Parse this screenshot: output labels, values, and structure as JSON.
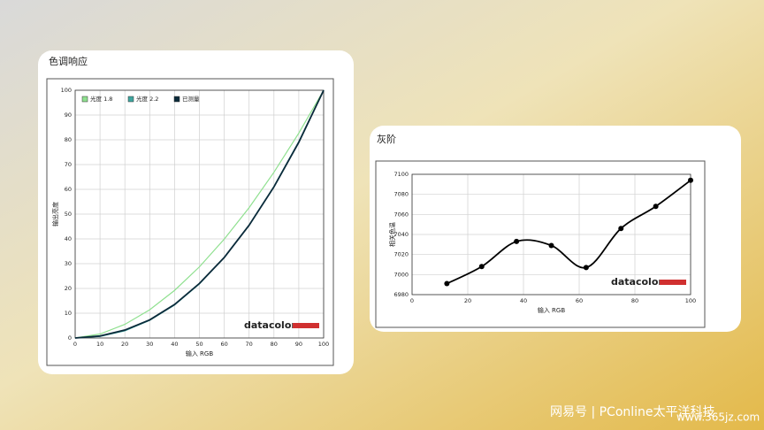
{
  "chart_data": [
    {
      "type": "line",
      "title": "色调响应",
      "x_label": "输入 RGB",
      "y_label": "输出亮度",
      "x": [
        0,
        10,
        20,
        30,
        40,
        50,
        60,
        70,
        80,
        90,
        100
      ],
      "series": [
        {
          "name": "光度 1.8",
          "color": "#8fe08f",
          "values": [
            0,
            1.6,
            5.5,
            11.4,
            19.2,
            28.7,
            39.9,
            52.6,
            66.9,
            82.7,
            100
          ]
        },
        {
          "name": "光度 2.2",
          "color": "#3fa6a0",
          "values": [
            0,
            0.6,
            2.9,
            7.1,
            13.3,
            21.8,
            32.5,
            45.6,
            61.2,
            79.3,
            100
          ]
        },
        {
          "name": "已测量",
          "color": "#0a2a3a",
          "values": [
            0,
            0.8,
            3.2,
            7.3,
            13.5,
            22,
            32.5,
            45.5,
            61,
            79,
            100
          ]
        }
      ],
      "xlim": [
        0,
        100
      ],
      "xticks": [
        0,
        10,
        20,
        30,
        40,
        50,
        60,
        70,
        80,
        90,
        100
      ],
      "ylim": [
        0,
        100
      ],
      "yticks": [
        0,
        10,
        20,
        30,
        40,
        50,
        60,
        70,
        80,
        90,
        100
      ],
      "grid": true,
      "legend": "top-left",
      "annotations": [
        "datacolor"
      ]
    },
    {
      "type": "line",
      "title": "灰阶",
      "x_label": "输入 RGB",
      "y_label": "相关色温",
      "x": [
        12.5,
        25,
        37.5,
        50,
        62.5,
        75,
        87.5,
        100
      ],
      "series": [
        {
          "name": "色温",
          "color": "#000000",
          "values": [
            6991,
            7008,
            7033,
            7029,
            7007,
            7046,
            7068,
            7094
          ]
        }
      ],
      "xlim": [
        0,
        100
      ],
      "xticks": [
        0,
        20,
        40,
        60,
        80,
        100
      ],
      "ylim": [
        6980,
        7100
      ],
      "yticks": [
        6980,
        7000,
        7020,
        7040,
        7060,
        7080,
        7100
      ],
      "grid": true,
      "smooth": true,
      "markers": true,
      "annotations": [
        "datacolor"
      ]
    }
  ],
  "watermark": [
    "网易号 | PConline太平洋科技",
    "www.365jz.com"
  ]
}
